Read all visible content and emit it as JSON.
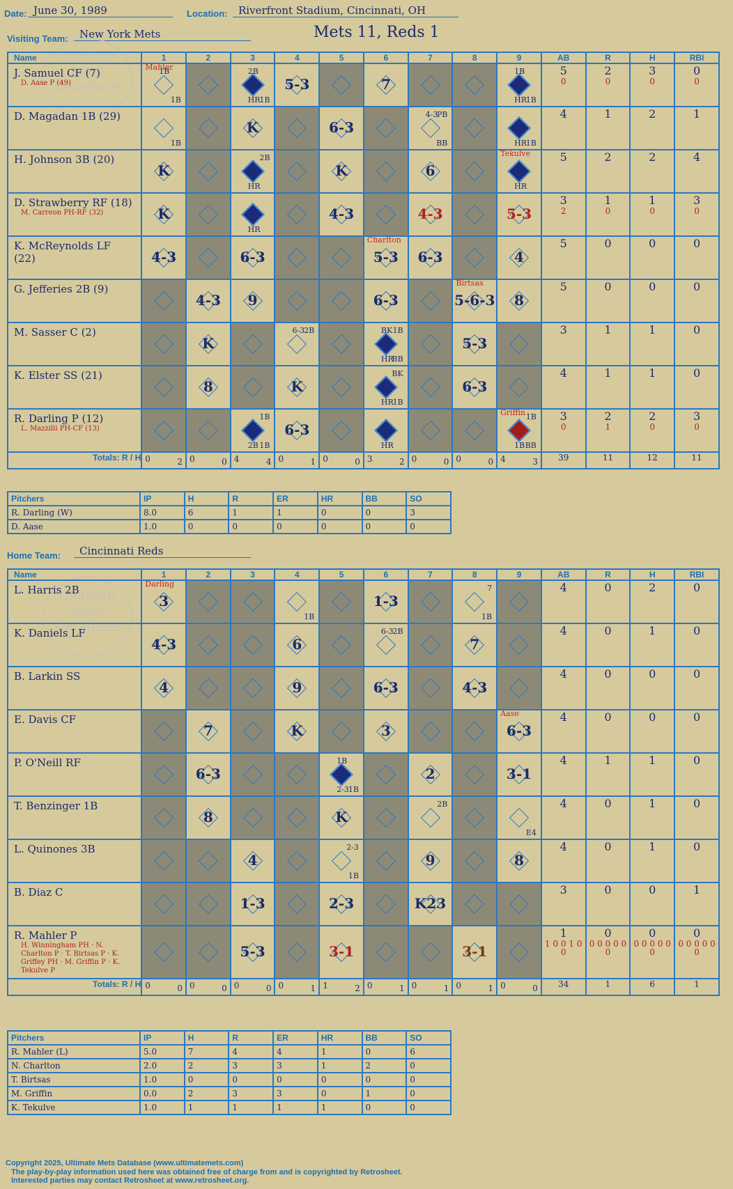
{
  "header": {
    "date_label": "Date:",
    "date": "June 30, 1989",
    "location_label": "Location:",
    "location": "Riverfront Stadium, Cincinnati, OH",
    "visiting_label": "Visiting Team:",
    "visiting_team": "New York Mets",
    "score_title": "Mets 11, Reds 1",
    "home_label": "Home Team:",
    "home_team": "Cincinnati Reds"
  },
  "watermark": "Ultimate Mets Database",
  "columns": {
    "name": "Name",
    "innings": [
      "1",
      "2",
      "3",
      "4",
      "5",
      "6",
      "7",
      "8",
      "9"
    ],
    "stats": [
      "AB",
      "R",
      "H",
      "RBI"
    ]
  },
  "totals_label": "Totals:",
  "totals_rh": [
    "R",
    "H"
  ],
  "visitor": {
    "players": [
      {
        "name": "J. Samuel CF (7)",
        "sub": "D. Aase P (49)",
        "stats": [
          "5",
          "2",
          "3",
          "0"
        ],
        "stats2": [
          "0",
          "0",
          "0",
          "0"
        ]
      },
      {
        "name": "D. Magadan 1B (29)",
        "sub": "",
        "stats": [
          "4",
          "1",
          "2",
          "1"
        ],
        "stats2": []
      },
      {
        "name": "H. Johnson 3B (20)",
        "sub": "",
        "stats": [
          "5",
          "2",
          "2",
          "4"
        ],
        "stats2": []
      },
      {
        "name": "D. Strawberry RF (18)",
        "sub": "M. Carreon PH-RF (32)",
        "stats": [
          "3",
          "1",
          "1",
          "3"
        ],
        "stats2": [
          "2",
          "0",
          "0",
          "0"
        ]
      },
      {
        "name": "K. McReynolds LF (22)",
        "sub": "",
        "stats": [
          "5",
          "0",
          "0",
          "0"
        ],
        "stats2": []
      },
      {
        "name": "G. Jefferies 2B (9)",
        "sub": "",
        "stats": [
          "5",
          "0",
          "0",
          "0"
        ],
        "stats2": []
      },
      {
        "name": "M. Sasser C (2)",
        "sub": "",
        "stats": [
          "3",
          "1",
          "1",
          "0"
        ],
        "stats2": []
      },
      {
        "name": "K. Elster SS (21)",
        "sub": "",
        "stats": [
          "4",
          "1",
          "1",
          "0"
        ],
        "stats2": []
      },
      {
        "name": "R. Darling P (12)",
        "sub": "L. Mazzilli PH-CF (13)",
        "stats": [
          "3",
          "2",
          "2",
          "3"
        ],
        "stats2": [
          "0",
          "1",
          "0",
          "0"
        ]
      }
    ],
    "totals_innings": [
      [
        "0",
        "2"
      ],
      [
        "0",
        "0"
      ],
      [
        "4",
        "4"
      ],
      [
        "0",
        "1"
      ],
      [
        "0",
        "0"
      ],
      [
        "3",
        "2"
      ],
      [
        "0",
        "0"
      ],
      [
        "0",
        "0"
      ],
      [
        "4",
        "3"
      ]
    ],
    "totals_stats": [
      "39",
      "11",
      "12",
      "11"
    ]
  },
  "visitor_pitching": {
    "headers": [
      "Pitchers",
      "IP",
      "H",
      "R",
      "ER",
      "HR",
      "BB",
      "SO"
    ],
    "rows": [
      [
        "R. Darling (W)",
        "8.0",
        "6",
        "1",
        "1",
        "0",
        "0",
        "3"
      ],
      [
        "D. Aase",
        "1.0",
        "0",
        "0",
        "0",
        "0",
        "0",
        "0"
      ]
    ]
  },
  "home": {
    "players": [
      {
        "name": "L. Harris 2B",
        "sub": "",
        "stats": [
          "4",
          "0",
          "2",
          "0"
        ],
        "stats2": []
      },
      {
        "name": "K. Daniels LF",
        "sub": "",
        "stats": [
          "4",
          "0",
          "1",
          "0"
        ],
        "stats2": []
      },
      {
        "name": "B. Larkin SS",
        "sub": "",
        "stats": [
          "4",
          "0",
          "0",
          "0"
        ],
        "stats2": []
      },
      {
        "name": "E. Davis CF",
        "sub": "",
        "stats": [
          "4",
          "0",
          "0",
          "0"
        ],
        "stats2": []
      },
      {
        "name": "P. O'Neill RF",
        "sub": "",
        "stats": [
          "4",
          "1",
          "1",
          "0"
        ],
        "stats2": []
      },
      {
        "name": "T. Benzinger 1B",
        "sub": "",
        "stats": [
          "4",
          "0",
          "1",
          "0"
        ],
        "stats2": []
      },
      {
        "name": "L. Quinones 3B",
        "sub": "",
        "stats": [
          "4",
          "0",
          "1",
          "0"
        ],
        "stats2": []
      },
      {
        "name": "B. Diaz C",
        "sub": "",
        "stats": [
          "3",
          "0",
          "0",
          "1"
        ],
        "stats2": []
      },
      {
        "name": "R. Mahler P",
        "sub": "H. Winningham PH · N. Charlton P · T. Birtsas P · K. Griffey PH · M. Griffin P · K. Tekulve P",
        "stats": [
          "1",
          "0",
          "0",
          "0"
        ],
        "stats2": [
          "1 0 0 1 0 0",
          "0 0 0 0 0 0",
          "0 0 0 0 0 0",
          "0 0 0 0 0 0"
        ]
      }
    ],
    "totals_innings": [
      [
        "0",
        "0"
      ],
      [
        "0",
        "0"
      ],
      [
        "0",
        "0"
      ],
      [
        "0",
        "1"
      ],
      [
        "1",
        "2"
      ],
      [
        "0",
        "1"
      ],
      [
        "0",
        "1"
      ],
      [
        "0",
        "1"
      ],
      [
        "0",
        "0"
      ]
    ],
    "totals_stats": [
      "34",
      "1",
      "6",
      "1"
    ]
  },
  "home_pitching": {
    "headers": [
      "Pitchers",
      "IP",
      "H",
      "R",
      "ER",
      "HR",
      "BB",
      "SO"
    ],
    "rows": [
      [
        "R. Mahler (L)",
        "5.0",
        "7",
        "4",
        "4",
        "1",
        "0",
        "6"
      ],
      [
        "N. Charlton",
        "2.0",
        "2",
        "3",
        "3",
        "1",
        "2",
        "0"
      ],
      [
        "T. Birtsas",
        "1.0",
        "0",
        "0",
        "0",
        "0",
        "0",
        "0"
      ],
      [
        "M. Griffin",
        "0.0",
        "2",
        "3",
        "3",
        "0",
        "1",
        "0"
      ],
      [
        "K. Tekulve",
        "1.0",
        "1",
        "1",
        "1",
        "1",
        "0",
        "0"
      ]
    ]
  },
  "footer": {
    "line1": "Copyright 2025, Ultimate Mets Database (www.ultimatemets.com)",
    "line2": "The play-by-play information used here was obtained free of charge from and is copyrighted by Retrosheet.",
    "line3": "Interested parties may contact Retrosheet at www.retrosheet.org."
  },
  "visitor_cells": [
    [
      {
        "r": "",
        "run": false,
        "tl": "1B",
        "br": "1B",
        "p": "Mahler"
      },
      {
        "sh": 1
      },
      {
        "r": "",
        "run": true,
        "tl": "2B",
        "bl": "HR",
        "br": "1B"
      },
      {
        "r": "5-3"
      },
      {
        "sh": 1
      },
      {
        "r": "7"
      },
      {
        "sh": 1
      },
      {
        "sh": 1
      },
      {
        "r": "",
        "run": true,
        "tl": "1B",
        "bl": "HR",
        "br": "1B"
      }
    ],
    [
      {
        "r": "",
        "br": "1B"
      },
      {
        "sh": 1
      },
      {
        "r": "K"
      },
      {
        "sh": 1
      },
      {
        "r": "6-3"
      },
      {
        "sh": 1
      },
      {
        "r": "",
        "tl": "4-3",
        "tr": "PB",
        "br": "BB"
      },
      {
        "sh": 1
      },
      {
        "r": "",
        "run": true,
        "bl": "HR",
        "br": "1B"
      }
    ],
    [
      {
        "r": "K"
      },
      {
        "sh": 1
      },
      {
        "r": "",
        "run": true,
        "tr": "2B",
        "bl": "HR"
      },
      {
        "sh": 1
      },
      {
        "r": "K"
      },
      {
        "sh": 1
      },
      {
        "r": "6"
      },
      {
        "sh": 1
      },
      {
        "r": "",
        "run": true,
        "bl": "HR",
        "p": "Tekulve"
      }
    ],
    [
      {
        "r": "K"
      },
      {
        "sh": 1
      },
      {
        "r": "",
        "run": true,
        "bl": "HR"
      },
      {
        "sh": 1
      },
      {
        "r": "4-3"
      },
      {
        "sh": 1
      },
      {
        "r": "4-3",
        "c": "red"
      },
      {
        "sh": 1
      },
      {
        "r": "5-3",
        "c": "red"
      }
    ],
    [
      {
        "r": "4-3"
      },
      {
        "sh": 1
      },
      {
        "r": "6-3"
      },
      {
        "sh": 1
      },
      {
        "sh": 1
      },
      {
        "r": "5-3",
        "p": "Charlton"
      },
      {
        "r": "6-3"
      },
      {
        "sh": 1
      },
      {
        "r": "4"
      }
    ],
    [
      {
        "sh": 1
      },
      {
        "r": "4-3"
      },
      {
        "r": "9"
      },
      {
        "sh": 1
      },
      {
        "sh": 1
      },
      {
        "r": "6-3"
      },
      {
        "sh": 1
      },
      {
        "r": "5-6-3",
        "p": "Birtsas"
      },
      {
        "r": "8"
      }
    ],
    [
      {
        "sh": 1
      },
      {
        "r": "K"
      },
      {
        "sh": 1
      },
      {
        "r": "",
        "tl": "6-3",
        "tr": "2B"
      },
      {
        "sh": 1
      },
      {
        "r": "",
        "run": true,
        "tl": "BK",
        "tr": "1B",
        "bl": "HR",
        "br": "BB"
      },
      {
        "sh": 1
      },
      {
        "r": "5-3"
      },
      {
        "sh": 1
      }
    ],
    [
      {
        "sh": 1
      },
      {
        "r": "8"
      },
      {
        "sh": 1
      },
      {
        "r": "K"
      },
      {
        "sh": 1
      },
      {
        "r": "",
        "run": true,
        "tr": "BK",
        "bl": "HR",
        "br": "1B"
      },
      {
        "sh": 1
      },
      {
        "r": "6-3"
      },
      {
        "sh": 1
      }
    ],
    [
      {
        "sh": 1
      },
      {
        "sh": 1
      },
      {
        "r": "",
        "run": true,
        "tr": "1B",
        "bl": "2B",
        "br": "1B"
      },
      {
        "r": "6-3"
      },
      {
        "sh": 1
      },
      {
        "r": "",
        "run": true,
        "bl": "HR"
      },
      {
        "sh": 1
      },
      {
        "sh": 1
      },
      {
        "r": "",
        "run": true,
        "red": true,
        "tr": "1B",
        "bl": "1B",
        "br": "BB",
        "p": "Griffin"
      }
    ]
  ],
  "home_cells": [
    [
      {
        "r": "3",
        "p": "Darling"
      },
      {
        "sh": 1
      },
      {
        "sh": 1
      },
      {
        "r": "",
        "br": "1B"
      },
      {
        "sh": 1
      },
      {
        "r": "1-3"
      },
      {
        "sh": 1
      },
      {
        "r": "",
        "tr": "7",
        "br": "1B"
      },
      {
        "sh": 1
      }
    ],
    [
      {
        "r": "4-3"
      },
      {
        "sh": 1
      },
      {
        "sh": 1
      },
      {
        "r": "6"
      },
      {
        "sh": 1
      },
      {
        "r": "",
        "tl": "6-3",
        "tr": "2B"
      },
      {
        "sh": 1
      },
      {
        "r": "7"
      },
      {
        "sh": 1
      }
    ],
    [
      {
        "r": "4"
      },
      {
        "sh": 1
      },
      {
        "sh": 1
      },
      {
        "r": "9"
      },
      {
        "sh": 1
      },
      {
        "r": "6-3"
      },
      {
        "sh": 1
      },
      {
        "r": "4-3"
      },
      {
        "sh": 1
      }
    ],
    [
      {
        "sh": 1
      },
      {
        "r": "7"
      },
      {
        "sh": 1
      },
      {
        "r": "K"
      },
      {
        "sh": 1
      },
      {
        "r": "3"
      },
      {
        "sh": 1
      },
      {
        "sh": 1
      },
      {
        "r": "6-3",
        "p": "Aase"
      }
    ],
    [
      {
        "sh": 1
      },
      {
        "r": "6-3"
      },
      {
        "sh": 1
      },
      {
        "sh": 1
      },
      {
        "r": "",
        "run": true,
        "tl": "1B",
        "bl": "2-3",
        "br": "1B"
      },
      {
        "sh": 1
      },
      {
        "r": "2"
      },
      {
        "sh": 1
      },
      {
        "r": "3-1"
      }
    ],
    [
      {
        "sh": 1
      },
      {
        "r": "8"
      },
      {
        "sh": 1
      },
      {
        "sh": 1
      },
      {
        "r": "K"
      },
      {
        "sh": 1
      },
      {
        "r": "",
        "tr": "2B"
      },
      {
        "sh": 1
      },
      {
        "r": "",
        "br": "E4"
      }
    ],
    [
      {
        "sh": 1
      },
      {
        "sh": 1
      },
      {
        "r": "4"
      },
      {
        "sh": 1
      },
      {
        "r": "",
        "tr": "2-3",
        "br": "1B"
      },
      {
        "sh": 1
      },
      {
        "r": "9"
      },
      {
        "sh": 1
      },
      {
        "r": "8"
      }
    ],
    [
      {
        "sh": 1
      },
      {
        "sh": 1
      },
      {
        "r": "1-3"
      },
      {
        "sh": 1
      },
      {
        "r": "2-3"
      },
      {
        "sh": 1
      },
      {
        "r": "K23"
      },
      {
        "sh": 1
      },
      {
        "sh": 1
      }
    ],
    [
      {
        "sh": 1
      },
      {
        "sh": 1
      },
      {
        "r": "5-3"
      },
      {
        "sh": 1
      },
      {
        "r": "3-1",
        "c": "red"
      },
      {
        "sh": 1
      },
      {
        "sh": 1
      },
      {
        "r": "3-1",
        "c": "brown"
      },
      {
        "sh": 1
      }
    ]
  ]
}
